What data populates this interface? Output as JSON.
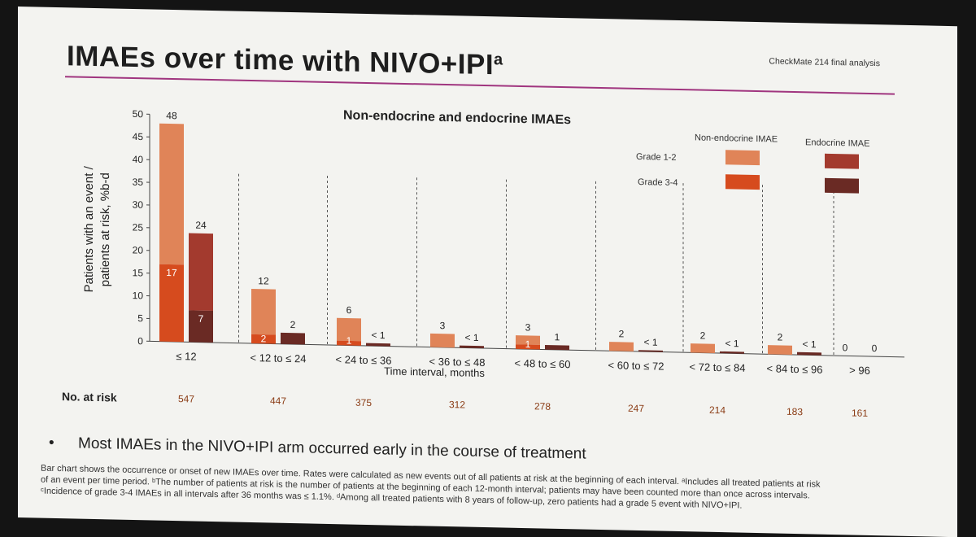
{
  "slide": {
    "title": "IMAEs over time with NIVO+IPI",
    "title_sup": "a",
    "study_label": "CheckMate 214 final analysis",
    "bullet": "Most IMAEs in the NIVO+IPI arm occurred early in the course of treatment",
    "footnotes": [
      "Bar chart shows the occurrence or onset of new IMAEs over time. Rates were calculated as new events out of all patients at risk at the beginning of each interval. ᵃIncludes all treated patients at risk",
      "of an event per time period. ᵇThe number of patients at risk is the number of patients at the beginning of each 12-month interval; patients may have been counted more than once across intervals.",
      "ᶜIncidence of grade 3-4 IMAEs in all intervals after 36 months was ≤ 1.1%. ᵈAmong all treated patients with 8 years of follow-up, zero patients had a grade 5 event with NIVO+IPI."
    ],
    "accent_rule_color": "#a0357f"
  },
  "chart_data": {
    "type": "bar",
    "stacked": true,
    "title": "Non-endocrine and endocrine IMAEs",
    "xlabel": "Time interval, months",
    "ylabel_lines": [
      "Patients with an event /",
      "patients at risk, %b-d"
    ],
    "ylim": [
      0,
      50
    ],
    "yticks": [
      0,
      5,
      10,
      15,
      20,
      25,
      30,
      35,
      40,
      45,
      50
    ],
    "categories": [
      "≤ 12",
      "< 12 to ≤ 24",
      "< 24 to ≤ 36",
      "< 36 to ≤ 48",
      "< 48 to ≤ 60",
      "< 60 to ≤ 72",
      "< 72 to ≤ 84",
      "< 84 to ≤ 96",
      "> 96"
    ],
    "groups": [
      {
        "name": "Non-endocrine IMAE",
        "total": [
          48,
          12,
          6,
          3,
          3,
          2,
          2,
          2,
          0
        ],
        "total_labels": [
          "48",
          "12",
          "6",
          "3",
          "3",
          "2",
          "2",
          "2",
          "0"
        ],
        "grade34": [
          17,
          2,
          1,
          0,
          1,
          0,
          0,
          0,
          0
        ],
        "grade34_labels": [
          "17",
          "2",
          "1",
          "",
          "1",
          "",
          "",
          "",
          ""
        ]
      },
      {
        "name": "Endocrine IMAE",
        "total": [
          24,
          2.5,
          0.6,
          0.5,
          1,
          0.3,
          0.4,
          0.6,
          0
        ],
        "total_labels": [
          "24",
          "2",
          "< 1",
          "< 1",
          "1",
          "< 1",
          "< 1",
          "< 1",
          "0"
        ],
        "grade34": [
          7,
          2.5,
          0.6,
          0.5,
          1,
          0.3,
          0.4,
          0.6,
          0
        ],
        "grade34_labels": [
          "7",
          "",
          "",
          "",
          "",
          "",
          "",
          "",
          ""
        ]
      }
    ],
    "legend": {
      "position": "top-right",
      "columns": [
        "Non-endocrine IMAE",
        "Endocrine IMAE"
      ],
      "rows": [
        "Grade 1-2",
        "Grade 3-4"
      ]
    },
    "colors": {
      "nonendo_grade12": "#e08458",
      "nonendo_grade34": "#d64b1e",
      "endo_grade12": "#a33a2e",
      "endo_grade34": "#6a2a24",
      "at_risk_text": "#8a3b14"
    },
    "at_risk": {
      "label": "No. at risk",
      "values": [
        "547",
        "447",
        "375",
        "312",
        "278",
        "247",
        "214",
        "183",
        "161"
      ]
    }
  }
}
